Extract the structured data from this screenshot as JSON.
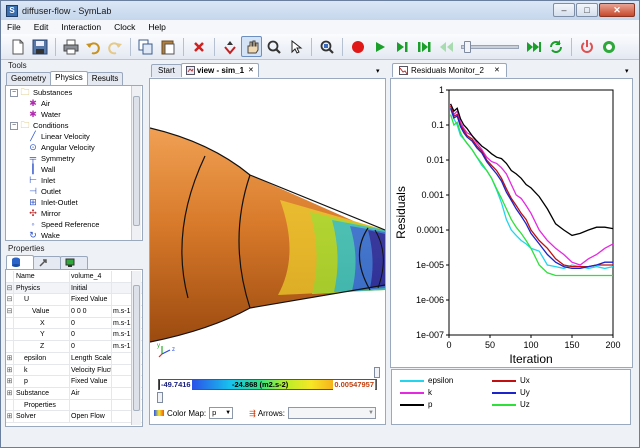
{
  "window": {
    "title": "diffuser-flow - SymLab",
    "icon": "S",
    "minimize": "–",
    "maximize": "□",
    "close": "✕"
  },
  "menu": [
    "File",
    "Edit",
    "Interaction",
    "Clock",
    "Help"
  ],
  "toolbar": {
    "icons": [
      "new-file-icon",
      "save-icon",
      "print-icon",
      "undo-icon",
      "redo-icon",
      "copy-icon",
      "paste-icon",
      "delete-icon",
      "interaction-icon",
      "pan-hand-icon",
      "zoom-icon",
      "select-pointer-icon",
      "zoom-fit-icon",
      "record-icon",
      "play-icon",
      "step-forward-icon",
      "step-end-icon",
      "step-back-icon",
      "fast-forward-icon",
      "loop-icon",
      "power-icon",
      "settings-gear-icon"
    ]
  },
  "tools": {
    "pane_title": "Tools",
    "tabs": [
      "Geometry",
      "Physics",
      "Results"
    ],
    "selected_tab": "Physics",
    "tree": [
      {
        "label": "Substances",
        "level": 0,
        "exp": "−",
        "icon": "folder-icon"
      },
      {
        "label": "Air",
        "level": 1,
        "icon": "substance-icon"
      },
      {
        "label": "Water",
        "level": 1,
        "icon": "substance-icon"
      },
      {
        "label": "Conditions",
        "level": 0,
        "exp": "−",
        "icon": "folder-icon"
      },
      {
        "label": "Linear Velocity",
        "level": 1,
        "icon": "linear-velocity-icon"
      },
      {
        "label": "Angular Velocity",
        "level": 1,
        "icon": "angular-velocity-icon"
      },
      {
        "label": "Symmetry",
        "level": 1,
        "icon": "symmetry-icon"
      },
      {
        "label": "Wall",
        "level": 1,
        "icon": "wall-icon"
      },
      {
        "label": "Inlet",
        "level": 1,
        "icon": "inlet-icon"
      },
      {
        "label": "Outlet",
        "level": 1,
        "icon": "outlet-icon"
      },
      {
        "label": "Inlet-Outlet",
        "level": 1,
        "icon": "inlet-outlet-icon"
      },
      {
        "label": "Mirror",
        "level": 1,
        "icon": "mirror-icon"
      },
      {
        "label": "Speed Reference",
        "level": 1,
        "icon": "speed-reference-icon"
      },
      {
        "label": "Wake",
        "level": 1,
        "icon": "wake-icon"
      }
    ]
  },
  "properties": {
    "pane_title": "Properties",
    "rows": [
      {
        "exp": "",
        "name": "Name",
        "value": "volume_4",
        "unit": "",
        "indent": 0
      },
      {
        "exp": "⊟",
        "name": "Physics",
        "value": "Initial",
        "unit": "",
        "indent": 0,
        "grp": true
      },
      {
        "exp": "⊟",
        "name": "U",
        "value": "Fixed Value",
        "unit": "",
        "indent": 1
      },
      {
        "exp": "⊟",
        "name": "Value",
        "value": "0 0 0",
        "unit": "m.s-1",
        "indent": 2
      },
      {
        "exp": "",
        "name": "X",
        "value": "0",
        "unit": "m.s-1",
        "indent": 3
      },
      {
        "exp": "",
        "name": "Y",
        "value": "0",
        "unit": "m.s-1",
        "indent": 3
      },
      {
        "exp": "",
        "name": "Z",
        "value": "0",
        "unit": "m.s-1",
        "indent": 3
      },
      {
        "exp": "⊞",
        "name": "epsilon",
        "value": "Length Scale",
        "unit": "",
        "indent": 1
      },
      {
        "exp": "⊞",
        "name": "k",
        "value": "Velocity Fluctuation",
        "unit": "",
        "indent": 1
      },
      {
        "exp": "⊞",
        "name": "p",
        "value": "Fixed Value",
        "unit": "",
        "indent": 1
      },
      {
        "exp": "⊞",
        "name": "Substance",
        "value": "Air",
        "unit": "",
        "indent": 0
      },
      {
        "exp": "",
        "name": "Properties",
        "value": "",
        "unit": "",
        "indent": 1
      },
      {
        "exp": "⊞",
        "name": "Solver",
        "value": "Open Flow",
        "unit": "",
        "indent": 0
      }
    ]
  },
  "view": {
    "tabs": [
      "Start",
      "view - sim_1"
    ],
    "close_glyph": "✕",
    "colorbar": {
      "min": "-49.7416",
      "mid": "-24.868 (m2.s-2)",
      "max": "0.00547957"
    },
    "color_map_label": "Color Map:",
    "color_map_value": "p",
    "arrows_label": "Arrows:",
    "arrows_value": "",
    "axis_labels": {
      "y": "y",
      "z": "z"
    }
  },
  "monitor": {
    "tab": "Residuals Monitor_2",
    "close_glyph": "✕"
  },
  "chart_data": {
    "type": "line",
    "title": "",
    "xlabel": "Iteration",
    "ylabel": "Residuals",
    "xlim": [
      0,
      200
    ],
    "ylim": [
      1e-07,
      1
    ],
    "yscale": "log",
    "xticks": [
      "0",
      "50",
      "100",
      "150",
      "200"
    ],
    "yticks": [
      "1",
      "0.1",
      "0.01",
      "0.001",
      "0.0001",
      "1e-005",
      "1e-006",
      "1e-007"
    ],
    "legend_placement": "bottom",
    "series": [
      {
        "name": "epsilon",
        "color": "#22d4ec",
        "x": [
          2,
          6,
          10,
          14,
          18,
          22,
          28,
          34,
          40,
          46,
          52,
          58,
          64,
          70,
          76,
          82,
          88,
          94,
          100,
          110,
          120,
          130,
          140,
          150,
          160,
          170,
          180,
          190,
          200
        ],
        "y": [
          0.3,
          0.15,
          0.1,
          0.05,
          0.04,
          0.03,
          0.02,
          0.012,
          0.007,
          0.005,
          0.003,
          0.0014,
          0.0006,
          0.0002,
          0.0001,
          7e-05,
          5e-05,
          4e-05,
          3e-05,
          2.5e-05,
          1e-05,
          9e-06,
          8e-06,
          1e-05,
          9e-06,
          8e-06,
          9e-06,
          8e-06,
          9e-06
        ]
      },
      {
        "name": "k",
        "color": "#e42ae0",
        "x": [
          2,
          6,
          10,
          14,
          18,
          22,
          28,
          34,
          40,
          46,
          52,
          58,
          64,
          70,
          76,
          82,
          88,
          94,
          100,
          110,
          120,
          130,
          140,
          150,
          160,
          170,
          180,
          190,
          200
        ],
        "y": [
          0.4,
          0.2,
          0.25,
          0.12,
          0.08,
          0.06,
          0.05,
          0.03,
          0.02,
          0.012,
          0.009,
          0.008,
          0.006,
          0.004,
          0.002,
          0.001,
          0.0008,
          0.0005,
          0.0003,
          0.0001,
          5e-05,
          3e-05,
          2e-05,
          1.2e-05,
          1e-05,
          1.5e-05,
          2e-05,
          3e-05,
          4e-05
        ]
      },
      {
        "name": "p",
        "color": "#000000",
        "x": [
          2,
          6,
          10,
          14,
          18,
          22,
          28,
          34,
          40,
          46,
          52,
          58,
          64,
          70,
          76,
          82,
          88,
          94,
          100,
          110,
          120,
          130,
          140,
          150,
          160,
          170,
          180,
          190,
          200
        ],
        "y": [
          0.4,
          0.25,
          0.3,
          0.15,
          0.1,
          0.08,
          0.05,
          0.035,
          0.025,
          0.02,
          0.015,
          0.012,
          0.011,
          0.008,
          0.005,
          0.004,
          0.003,
          0.002,
          0.0016,
          0.0009,
          0.0004,
          0.00015,
          0.0001,
          7e-05,
          8e-05,
          0.0001,
          0.00012,
          0.00012,
          0.00011
        ]
      },
      {
        "name": "Ux",
        "color": "#c01010",
        "x": [
          2,
          6,
          10,
          14,
          18,
          22,
          28,
          34,
          40,
          46,
          52,
          58,
          64,
          70,
          76,
          82,
          88,
          94,
          100,
          110,
          120,
          130,
          140,
          150,
          160,
          170,
          180,
          190,
          200
        ],
        "y": [
          0.35,
          0.18,
          0.2,
          0.1,
          0.07,
          0.05,
          0.04,
          0.025,
          0.018,
          0.01,
          0.007,
          0.005,
          0.003,
          0.0015,
          0.0008,
          0.0005,
          0.0003,
          0.0002,
          0.0001,
          5e-05,
          3e-05,
          1.5e-05,
          1e-05,
          9e-06,
          9e-06,
          9e-06,
          1e-05,
          1e-05,
          1e-05
        ]
      },
      {
        "name": "Uy",
        "color": "#1a24c8",
        "x": [
          2,
          6,
          10,
          14,
          18,
          22,
          28,
          34,
          40,
          46,
          52,
          58,
          64,
          70,
          76,
          82,
          88,
          94,
          100,
          110,
          120,
          130,
          140,
          150,
          160,
          170,
          180,
          190,
          200
        ],
        "y": [
          0.3,
          0.16,
          0.18,
          0.09,
          0.06,
          0.045,
          0.035,
          0.022,
          0.016,
          0.009,
          0.006,
          0.004,
          0.0025,
          0.0012,
          0.0007,
          0.0004,
          0.00025,
          0.00015,
          8e-05,
          4e-05,
          2e-05,
          1.2e-05,
          9e-06,
          8e-06,
          8e-06,
          9e-06,
          1e-05,
          1.2e-05,
          1.2e-05
        ]
      },
      {
        "name": "Uz",
        "color": "#2ee03a",
        "x": [
          2,
          6,
          10,
          14,
          18,
          22,
          28,
          34,
          40,
          46,
          52,
          58,
          64,
          70,
          76,
          82,
          88,
          94,
          100,
          110,
          120,
          130,
          140,
          150,
          160,
          170,
          180,
          190,
          200
        ],
        "y": [
          0.2,
          0.1,
          0.12,
          0.06,
          0.04,
          0.03,
          0.02,
          0.012,
          0.008,
          0.005,
          0.003,
          0.0015,
          0.0008,
          0.0004,
          0.0002,
          0.00012,
          8e-05,
          5e-05,
          3e-05,
          1e-05,
          6e-06,
          5e-06,
          5e-06,
          5e-06,
          5e-06,
          5e-06,
          5e-06,
          5e-06,
          5e-06
        ]
      }
    ]
  }
}
